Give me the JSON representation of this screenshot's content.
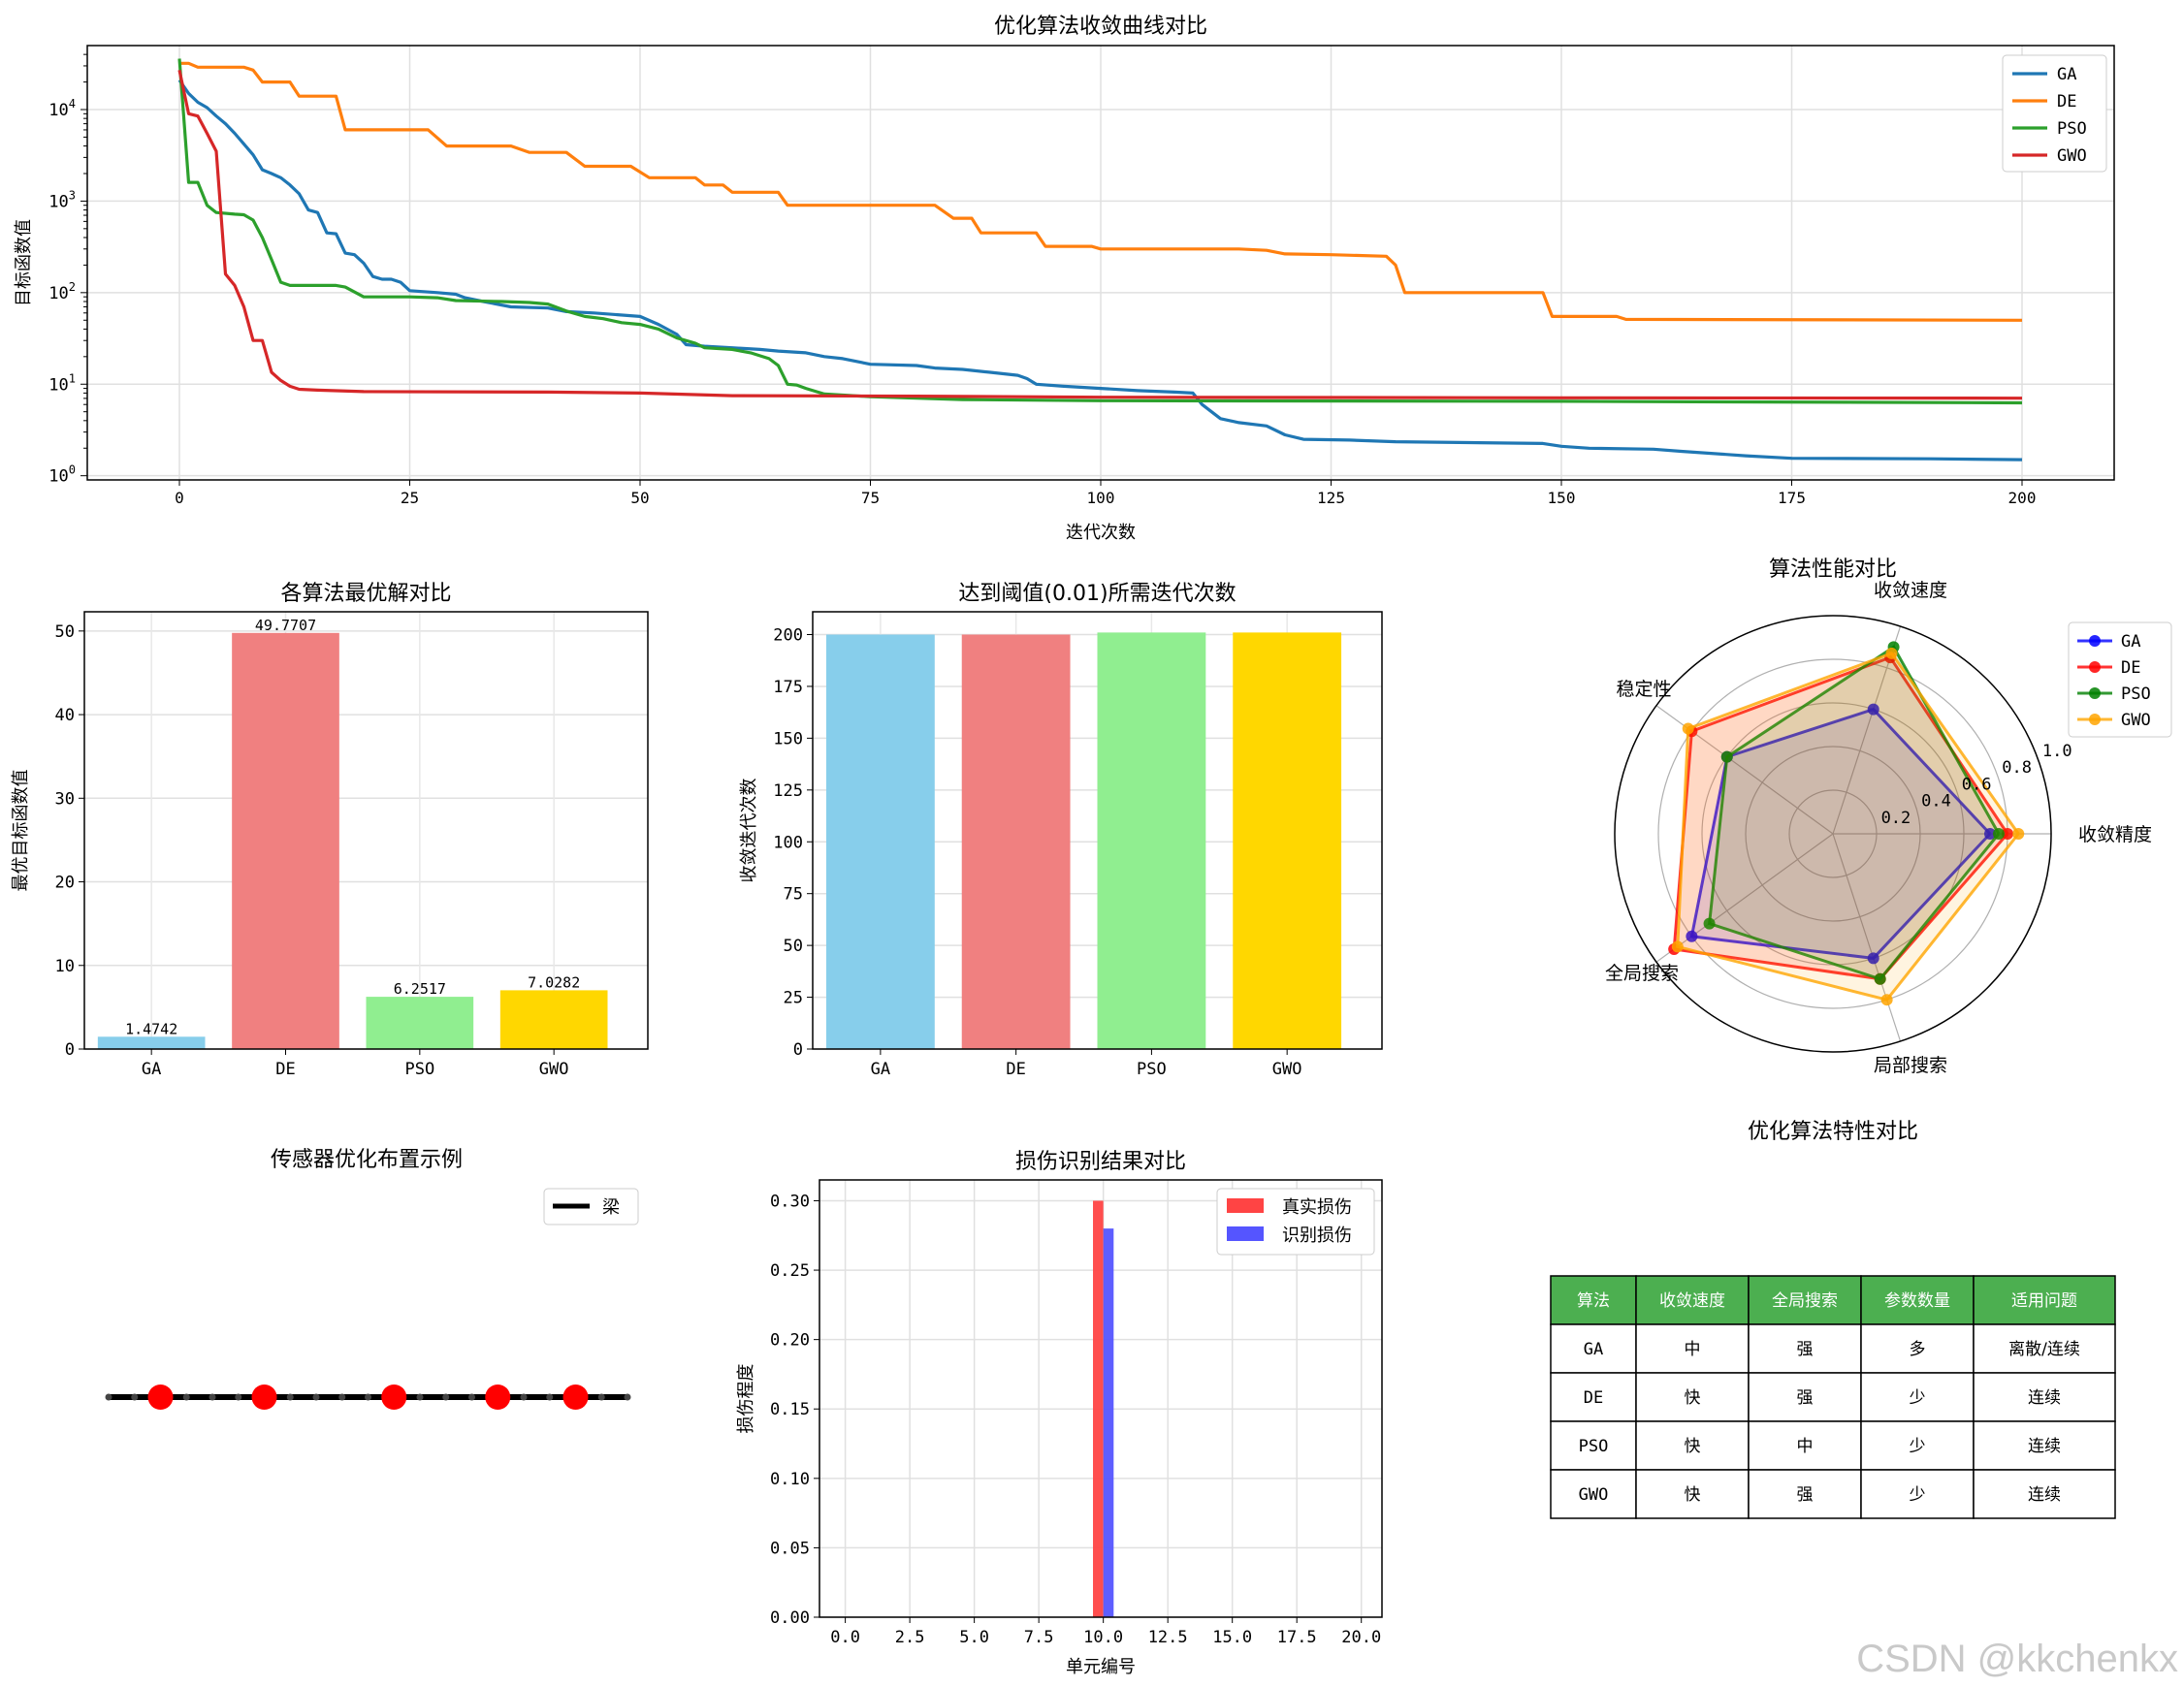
{
  "watermark": "CSDN @kkchenkx",
  "colors": {
    "GA": "#1f77b4",
    "DE": "#ff7f0e",
    "PSO": "#2ca02c",
    "GWO": "#d62728"
  },
  "chart_data": [
    {
      "id": "convergence",
      "type": "line",
      "title": "优化算法收敛曲线对比",
      "xlabel": "迭代次数",
      "ylabel": "目标函数值",
      "yscale": "log",
      "xlim": [
        -10,
        210
      ],
      "ylim": [
        0.9,
        50000
      ],
      "xticks": [
        0,
        25,
        50,
        75,
        100,
        125,
        150,
        175,
        200
      ],
      "yticks": [
        {
          "v": 1,
          "e": "0"
        },
        {
          "v": 10,
          "e": "1"
        },
        {
          "v": 100,
          "e": "2"
        },
        {
          "v": 1000,
          "e": "3"
        },
        {
          "v": 10000,
          "e": "4"
        }
      ],
      "legend": "top-right",
      "grid": true,
      "series": [
        {
          "name": "GA",
          "color": "#1f77b4",
          "points": [
            [
              0,
              21000
            ],
            [
              1,
              15000
            ],
            [
              2,
              12000
            ],
            [
              3,
              10500
            ],
            [
              4,
              8500
            ],
            [
              5,
              7000
            ],
            [
              6,
              5500
            ],
            [
              7,
              4200
            ],
            [
              8,
              3200
            ],
            [
              9,
              2200
            ],
            [
              10,
              2000
            ],
            [
              11,
              1800
            ],
            [
              12,
              1500
            ],
            [
              13,
              1200
            ],
            [
              14,
              800
            ],
            [
              15,
              750
            ],
            [
              16,
              450
            ],
            [
              17,
              440
            ],
            [
              18,
              270
            ],
            [
              19,
              260
            ],
            [
              20,
              210
            ],
            [
              21,
              150
            ],
            [
              22,
              140
            ],
            [
              23,
              140
            ],
            [
              24,
              130
            ],
            [
              25,
              105
            ],
            [
              28,
              100
            ],
            [
              30,
              96
            ],
            [
              31,
              88
            ],
            [
              33,
              80
            ],
            [
              36,
              70
            ],
            [
              40,
              68
            ],
            [
              42,
              62
            ],
            [
              45,
              60
            ],
            [
              50,
              55
            ],
            [
              52,
              45
            ],
            [
              54,
              35
            ],
            [
              55,
              27
            ],
            [
              57,
              26
            ],
            [
              60,
              25
            ],
            [
              63,
              24
            ],
            [
              65,
              23
            ],
            [
              68,
              22
            ],
            [
              70,
              20
            ],
            [
              72,
              19
            ],
            [
              75,
              16.5
            ],
            [
              80,
              16
            ],
            [
              82,
              15
            ],
            [
              85,
              14.5
            ],
            [
              88,
              13.5
            ],
            [
              91,
              12.5
            ],
            [
              92,
              11.5
            ],
            [
              93,
              10
            ],
            [
              96,
              9.5
            ],
            [
              100,
              9
            ],
            [
              104,
              8.5
            ],
            [
              108,
              8.2
            ],
            [
              110,
              8
            ],
            [
              111,
              6
            ],
            [
              113,
              4.2
            ],
            [
              115,
              3.8
            ],
            [
              118,
              3.5
            ],
            [
              120,
              2.8
            ],
            [
              122,
              2.5
            ],
            [
              127,
              2.45
            ],
            [
              132,
              2.35
            ],
            [
              140,
              2.3
            ],
            [
              148,
              2.25
            ],
            [
              150,
              2.1
            ],
            [
              153,
              2
            ],
            [
              160,
              1.95
            ],
            [
              163,
              1.85
            ],
            [
              170,
              1.65
            ],
            [
              175,
              1.55
            ],
            [
              190,
              1.53
            ],
            [
              200,
              1.5
            ]
          ]
        },
        {
          "name": "DE",
          "color": "#ff7f0e",
          "points": [
            [
              0,
              32000
            ],
            [
              1,
              32000
            ],
            [
              2,
              29000
            ],
            [
              7,
              29000
            ],
            [
              8,
              27000
            ],
            [
              9,
              20000
            ],
            [
              12,
              20000
            ],
            [
              13,
              14000
            ],
            [
              17,
              14000
            ],
            [
              18,
              6000
            ],
            [
              27,
              6000
            ],
            [
              29,
              4000
            ],
            [
              36,
              4000
            ],
            [
              38,
              3400
            ],
            [
              42,
              3400
            ],
            [
              44,
              2400
            ],
            [
              49,
              2400
            ],
            [
              51,
              1800
            ],
            [
              56,
              1800
            ],
            [
              57,
              1500
            ],
            [
              59,
              1500
            ],
            [
              60,
              1250
            ],
            [
              65,
              1250
            ],
            [
              66,
              900
            ],
            [
              82,
              900
            ],
            [
              84,
              650
            ],
            [
              86,
              650
            ],
            [
              87,
              450
            ],
            [
              93,
              450
            ],
            [
              94,
              320
            ],
            [
              99,
              320
            ],
            [
              100,
              300
            ],
            [
              115,
              300
            ],
            [
              118,
              290
            ],
            [
              120,
              265
            ],
            [
              125,
              260
            ],
            [
              131,
              250
            ],
            [
              132,
              200
            ],
            [
              133,
              100
            ],
            [
              148,
              100
            ],
            [
              149,
              55
            ],
            [
              156,
              55
            ],
            [
              157,
              51
            ],
            [
              200,
              50
            ]
          ]
        },
        {
          "name": "PSO",
          "color": "#2ca02c",
          "points": [
            [
              0,
              36000
            ],
            [
              1,
              1600
            ],
            [
              2,
              1600
            ],
            [
              3,
              900
            ],
            [
              4,
              750
            ],
            [
              6,
              720
            ],
            [
              7,
              710
            ],
            [
              8,
              620
            ],
            [
              9,
              400
            ],
            [
              10,
              230
            ],
            [
              11,
              130
            ],
            [
              12,
              120
            ],
            [
              17,
              120
            ],
            [
              18,
              115
            ],
            [
              20,
              90
            ],
            [
              25,
              90
            ],
            [
              28,
              88
            ],
            [
              30,
              82
            ],
            [
              35,
              80
            ],
            [
              38,
              78
            ],
            [
              40,
              75
            ],
            [
              42,
              63
            ],
            [
              44,
              55
            ],
            [
              46,
              52
            ],
            [
              48,
              47
            ],
            [
              50,
              45
            ],
            [
              52,
              40
            ],
            [
              54,
              32
            ],
            [
              56,
              28
            ],
            [
              57,
              25
            ],
            [
              60,
              24
            ],
            [
              62,
              22
            ],
            [
              64,
              19
            ],
            [
              65,
              16
            ],
            [
              66,
              10
            ],
            [
              67,
              9.8
            ],
            [
              68,
              9
            ],
            [
              70,
              7.8
            ],
            [
              75,
              7.3
            ],
            [
              85,
              6.8
            ],
            [
              100,
              6.6
            ],
            [
              150,
              6.5
            ],
            [
              200,
              6.25
            ]
          ]
        },
        {
          "name": "GWO",
          "color": "#d62728",
          "points": [
            [
              0,
              27000
            ],
            [
              1,
              9000
            ],
            [
              2,
              8500
            ],
            [
              3,
              5500
            ],
            [
              4,
              3500
            ],
            [
              5,
              160
            ],
            [
              6,
              120
            ],
            [
              7,
              70
            ],
            [
              8,
              30
            ],
            [
              9,
              30
            ],
            [
              10,
              13.5
            ],
            [
              11,
              11
            ],
            [
              12,
              9.5
            ],
            [
              13,
              8.8
            ],
            [
              15,
              8.6
            ],
            [
              20,
              8.3
            ],
            [
              40,
              8.2
            ],
            [
              50,
              8
            ],
            [
              60,
              7.5
            ],
            [
              80,
              7.4
            ],
            [
              100,
              7.2
            ],
            [
              150,
              7.1
            ],
            [
              200,
              7.03
            ]
          ]
        }
      ]
    },
    {
      "id": "best_solution",
      "type": "bar",
      "title": "各算法最优解对比",
      "ylabel": "最优目标函数值",
      "categories": [
        "GA",
        "DE",
        "PSO",
        "GWO"
      ],
      "values": [
        1.4742,
        49.7707,
        6.2517,
        7.0282
      ],
      "value_labels": [
        "1.4742",
        "49.7707",
        "6.2517",
        "7.0282"
      ],
      "colors": [
        "#87ceeb",
        "#f08080",
        "#90ee90",
        "#ffd700"
      ],
      "ylim": [
        0,
        52.3
      ],
      "yticks": [
        0,
        10,
        20,
        30,
        40,
        50
      ]
    },
    {
      "id": "iterations_to_threshold",
      "type": "bar",
      "title": "达到阈值(0.01)所需迭代次数",
      "ylabel": "收敛迭代次数",
      "categories": [
        "GA",
        "DE",
        "PSO",
        "GWO"
      ],
      "values": [
        200,
        200,
        201,
        201
      ],
      "colors": [
        "#87ceeb",
        "#f08080",
        "#90ee90",
        "#ffd700"
      ],
      "ylim": [
        0,
        211
      ],
      "yticks": [
        0,
        25,
        50,
        75,
        100,
        125,
        150,
        175,
        200
      ]
    },
    {
      "id": "radar",
      "type": "radar",
      "title": "算法性能对比",
      "axes": [
        "收敛精度",
        "收敛速度",
        "稳定性",
        "全局搜索",
        "局部搜索"
      ],
      "rticks": [
        "0.2",
        "0.4",
        "0.6",
        "0.8",
        "1.0"
      ],
      "rmax": 1.0,
      "legend": "top-right",
      "series": [
        {
          "name": "GA",
          "color": "#0000ff",
          "values": [
            0.72,
            0.6,
            0.6,
            0.8,
            0.6
          ]
        },
        {
          "name": "DE",
          "color": "#ff0000",
          "values": [
            0.8,
            0.85,
            0.8,
            0.9,
            0.7
          ]
        },
        {
          "name": "PSO",
          "color": "#008000",
          "values": [
            0.76,
            0.9,
            0.6,
            0.7,
            0.7
          ]
        },
        {
          "name": "GWO",
          "color": "#ffa500",
          "values": [
            0.85,
            0.87,
            0.82,
            0.88,
            0.8
          ]
        }
      ]
    },
    {
      "id": "sensor_layout",
      "type": "scatter",
      "title": "传感器优化布置示例",
      "legend_label": "梁",
      "beam_x": [
        0,
        20
      ],
      "nodes": [
        0,
        1,
        2,
        3,
        4,
        5,
        6,
        7,
        8,
        9,
        10,
        11,
        12,
        13,
        14,
        15,
        16,
        17,
        18,
        19,
        20
      ],
      "sensors": [
        2,
        6,
        11,
        15,
        18
      ]
    },
    {
      "id": "damage_identification",
      "type": "bar",
      "title": "损伤识别结果对比",
      "xlabel": "单元编号",
      "ylabel": "损伤程度",
      "legend": "top-right",
      "xlim": [
        -1,
        20.8
      ],
      "ylim": [
        0,
        0.315
      ],
      "xticks": [
        "0.0",
        "2.5",
        "5.0",
        "7.5",
        "10.0",
        "12.5",
        "15.0",
        "17.5",
        "20.0"
      ],
      "yticks": [
        "0.00",
        "0.05",
        "0.10",
        "0.15",
        "0.20",
        "0.25",
        "0.30"
      ],
      "series": [
        {
          "name": "真实损伤",
          "color": "#ff4444",
          "x": 9.8,
          "value": 0.3
        },
        {
          "name": "识别损伤",
          "color": "#5555ff",
          "x": 10.2,
          "value": 0.28
        }
      ]
    },
    {
      "id": "features_table",
      "type": "table",
      "title": "优化算法特性对比",
      "header_color": "#4caf50",
      "columns": [
        "算法",
        "收敛速度",
        "全局搜索",
        "参数数量",
        "适用问题"
      ],
      "rows": [
        [
          "GA",
          "中",
          "强",
          "多",
          "离散/连续"
        ],
        [
          "DE",
          "快",
          "强",
          "少",
          "连续"
        ],
        [
          "PSO",
          "快",
          "中",
          "少",
          "连续"
        ],
        [
          "GWO",
          "快",
          "强",
          "少",
          "连续"
        ]
      ]
    }
  ]
}
